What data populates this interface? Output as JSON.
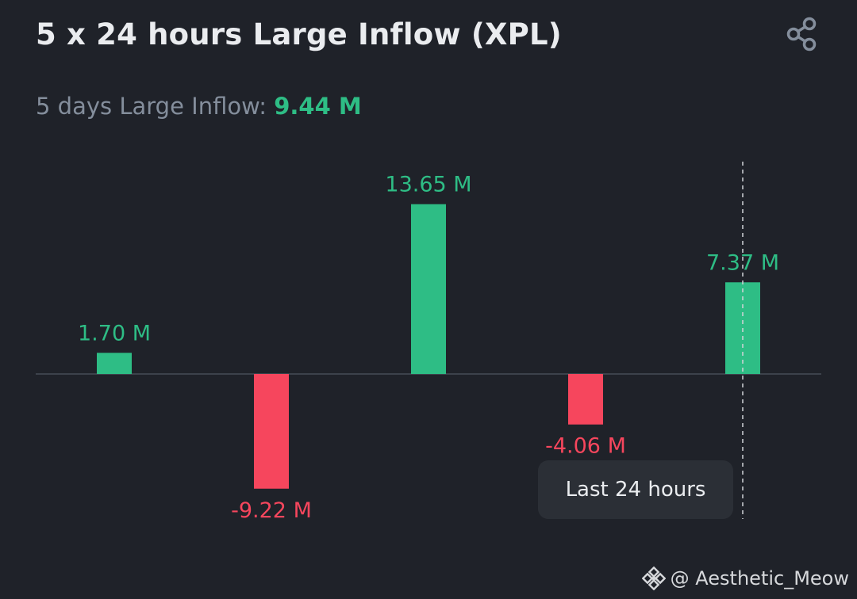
{
  "header": {
    "title": "5 x 24 hours Large Inflow (XPL)",
    "share_icon": "share-icon"
  },
  "summary": {
    "label": "5 days Large Inflow:",
    "value": "9.44 M"
  },
  "tooltip": {
    "text": "Last 24 hours"
  },
  "watermark": {
    "icon": "binance-logo-icon",
    "text": "@ Aesthetic_Meow"
  },
  "colors": {
    "background": "#1f2229",
    "positive": "#2ebd85",
    "negative": "#f6465d",
    "text": "#eaecef",
    "muted": "#848e9c",
    "tooltip_bg": "#2b2f36"
  },
  "chart_data": {
    "type": "bar",
    "unit": "M",
    "values": [
      1.7,
      -9.22,
      13.65,
      -4.06,
      7.37
    ],
    "labels": [
      "1.70 M",
      "-9.22 M",
      "13.65 M",
      "-4.06 M",
      "7.37 M"
    ],
    "ylim": [
      -10.5,
      16
    ],
    "grid": false,
    "legend": "none",
    "highlighted_index": 4
  }
}
